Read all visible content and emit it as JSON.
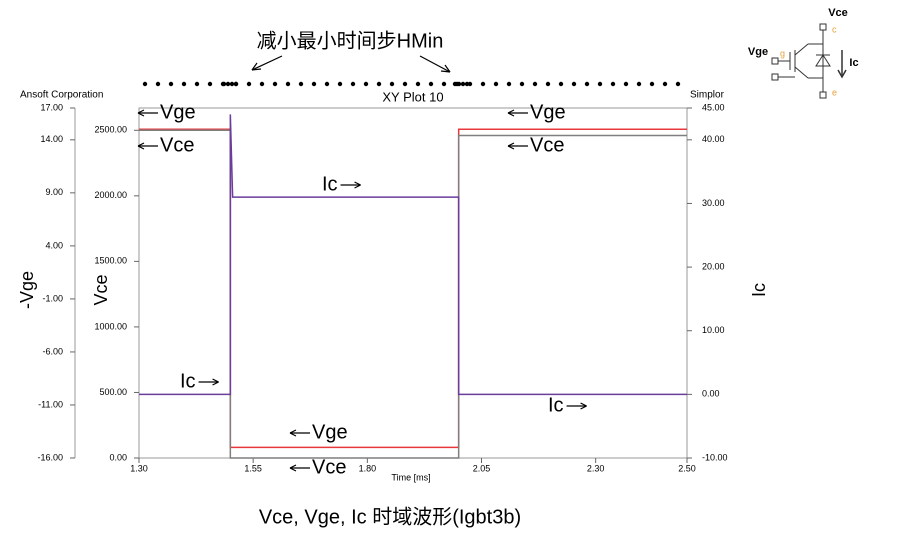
{
  "chart_data": {
    "type": "line",
    "title": "XY Plot 10",
    "top_note": "减小最小时间步HMin",
    "left_corner": "Ansoft Corporation",
    "right_corner": "Simplor",
    "caption": "Vce, Vge, Ic 时域波形(Igbt3b)",
    "x_label": "Time [ms]",
    "y_label": "-Vge",
    "y3_label": "Vce",
    "y2_label": "Ic",
    "xlim": [
      1.3,
      2.5
    ],
    "xticks": [
      {
        "value": 1.3,
        "label": "1.30"
      },
      {
        "value": 1.55,
        "label": "1.55"
      },
      {
        "value": 1.8,
        "label": "1.80"
      },
      {
        "value": 2.05,
        "label": "2.05"
      },
      {
        "value": 2.3,
        "label": "2.30"
      },
      {
        "value": 2.5,
        "label": "2.50"
      }
    ],
    "ylim": [
      -16,
      17
    ],
    "yticks": [
      {
        "value": 17,
        "label": "17.00"
      },
      {
        "value": 14,
        "label": "14.00"
      },
      {
        "value": 9,
        "label": "9.00"
      },
      {
        "value": 4,
        "label": "4.00"
      },
      {
        "value": -1,
        "label": "-1.00"
      },
      {
        "value": -6,
        "label": "-6.00"
      },
      {
        "value": -11,
        "label": "-11.00"
      },
      {
        "value": -16,
        "label": "-16.00"
      }
    ],
    "y3lim": [
      0,
      2670
    ],
    "y3ticks": [
      {
        "value": 0,
        "label": "0.00"
      },
      {
        "value": 500,
        "label": "500.00"
      },
      {
        "value": 1000,
        "label": "1000.00"
      },
      {
        "value": 1500,
        "label": "1500.00"
      },
      {
        "value": 2000,
        "label": "2000.00"
      },
      {
        "value": 2500,
        "label": "2500.00"
      }
    ],
    "y2lim": [
      -10,
      45
    ],
    "y2ticks": [
      {
        "value": -10,
        "label": "-10.00"
      },
      {
        "value": 0,
        "label": "0.00"
      },
      {
        "value": 10,
        "label": "10.00"
      },
      {
        "value": 20,
        "label": "20.00"
      },
      {
        "value": 30,
        "label": "30.00"
      },
      {
        "value": 40,
        "label": "40.00"
      },
      {
        "value": 45,
        "label": "45.00"
      }
    ],
    "series": [
      {
        "name": "-Vge",
        "color": "#e8383c",
        "axis": "y",
        "x": [
          1.3,
          1.5,
          1.5,
          2.0,
          2.0,
          2.5
        ],
        "values": [
          15,
          15,
          -15,
          -15,
          15,
          15
        ]
      },
      {
        "name": "Vce",
        "color": "#7f7f7f",
        "axis": "y3",
        "x": [
          1.3,
          1.5,
          1.5,
          2.0,
          2.0,
          2.5
        ],
        "values": [
          2500,
          2500,
          0,
          0,
          2460,
          2460
        ]
      },
      {
        "name": "Ic",
        "color": "#6a3d9a",
        "axis": "y2",
        "x": [
          1.3,
          1.5,
          1.5,
          1.505,
          2.0,
          2.0,
          2.5
        ],
        "values": [
          0,
          0,
          44,
          31,
          31,
          0,
          0
        ]
      }
    ],
    "annotations": [
      {
        "text": "Vge",
        "arrow": "left"
      },
      {
        "text": "Vce",
        "arrow": "left"
      },
      {
        "text": "Ic",
        "arrow": "right"
      },
      {
        "text": "Ic",
        "arrow": "right"
      },
      {
        "text": "Vge",
        "arrow": "left"
      },
      {
        "text": "Vce",
        "arrow": "left"
      },
      {
        "text": "Vge",
        "arrow": "left"
      },
      {
        "text": "Vce",
        "arrow": "left"
      },
      {
        "text": "Ic",
        "arrow": "right"
      }
    ],
    "circuit": {
      "vce": "Vce",
      "vge": "Vge",
      "ic": "Ic",
      "c": "c",
      "g": "g",
      "e": "e"
    }
  }
}
